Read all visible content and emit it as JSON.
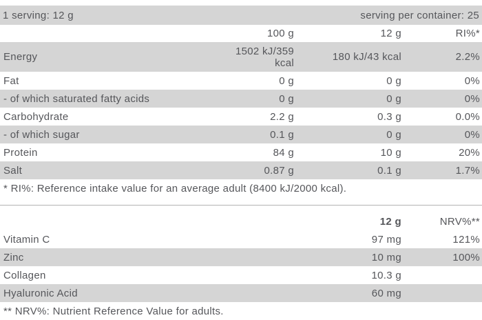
{
  "colors": {
    "row_gray": "#d5d5d5",
    "text": "#55565a",
    "divider": "#b2b2b2"
  },
  "nutrition_table": {
    "serving_left": "1 serving: 12 g",
    "serving_right": "serving per container: 25",
    "columns": {
      "per_100": "100 g",
      "per_serving": "12 g",
      "ri": "RI%*"
    },
    "rows": [
      {
        "label": "Energy",
        "per_100": "1502 kJ/359 kcal",
        "per_serving": "180 kJ/43 kcal",
        "ri": "2.2%"
      },
      {
        "label": "Fat",
        "per_100": "0 g",
        "per_serving": "0 g",
        "ri": "0%"
      },
      {
        "label": "- of which saturated fatty acids",
        "per_100": "0 g",
        "per_serving": "0 g",
        "ri": "0%"
      },
      {
        "label": "Carbohydrate",
        "per_100": "2.2 g",
        "per_serving": "0.3 g",
        "ri": "0.0%"
      },
      {
        "label": "- of which sugar",
        "per_100": "0.1 g",
        "per_serving": "0 g",
        "ri": "0%"
      },
      {
        "label": "Protein",
        "per_100": "84 g",
        "per_serving": "10 g",
        "ri": "20%"
      },
      {
        "label": "Salt",
        "per_100": "0.87 g",
        "per_serving": "0.1 g",
        "ri": "1.7%"
      }
    ],
    "footnote": "* RI%: Reference intake value for an average adult (8400 kJ/2000 kcal)."
  },
  "micronutrient_table": {
    "columns": {
      "amount": "12 g",
      "nrv": "NRV%**"
    },
    "rows": [
      {
        "label": "Vitamin C",
        "amount": "97 mg",
        "nrv": "121%"
      },
      {
        "label": "Zinc",
        "amount": "10 mg",
        "nrv": "100%"
      },
      {
        "label": "Collagen",
        "amount": "10.3 g",
        "nrv": ""
      },
      {
        "label": "Hyaluronic Acid",
        "amount": "60 mg",
        "nrv": ""
      }
    ],
    "footnote": "** NRV%: Nutrient Reference Value for adults."
  }
}
